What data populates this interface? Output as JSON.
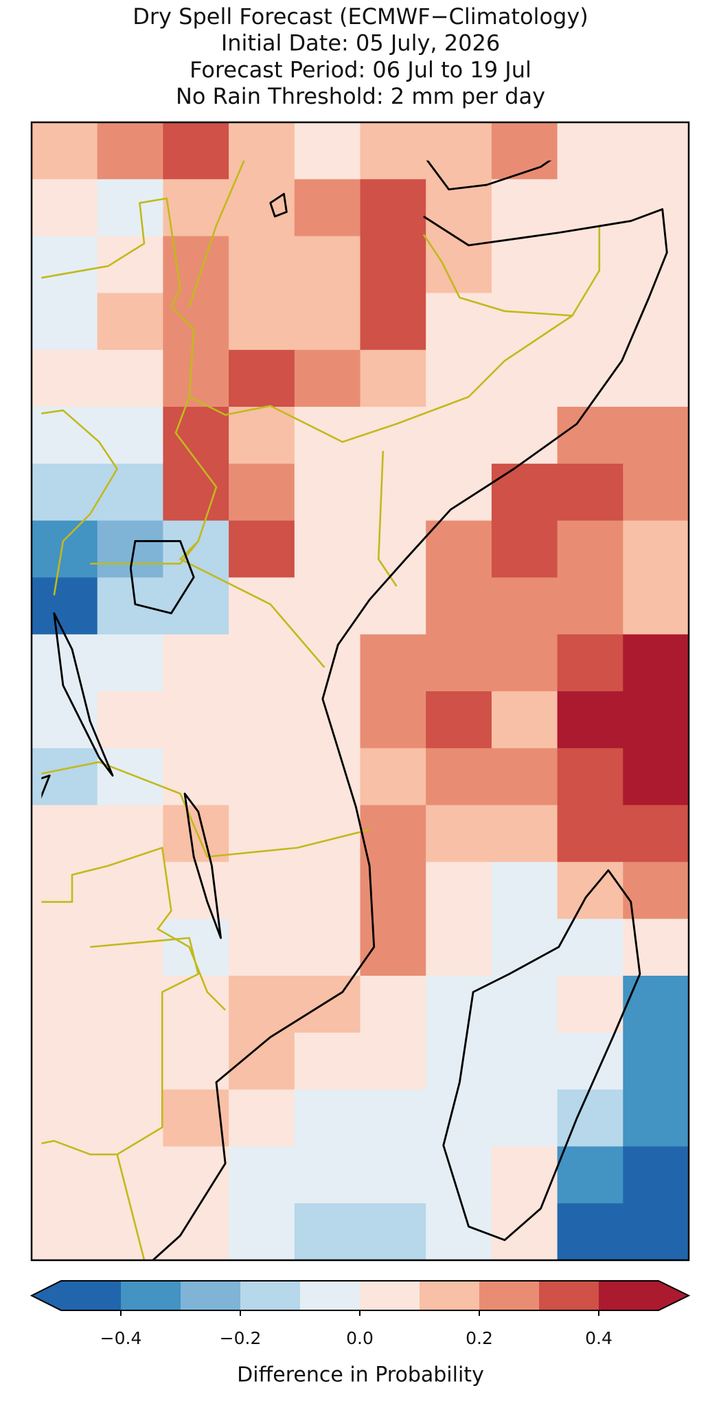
{
  "chart_data": {
    "type": "heatmap",
    "title": [
      "Dry Spell Forecast (ECMWF−Climatology)",
      "Initial Date: 05 July, 2026",
      "Forecast Period: 06 Jul to 19 Jul",
      "No Rain Threshold: 2 mm per day"
    ],
    "z": [
      [
        0.15,
        0.2,
        0.3,
        0.1,
        0.05,
        0.15,
        0.1,
        0.2,
        0.05,
        0.05
      ],
      [
        0,
        -0.1,
        0.1,
        0.15,
        0.2,
        0.35,
        0.1,
        0,
        0.05,
        0.05
      ],
      [
        -0.05,
        0.05,
        0.2,
        0.1,
        0.15,
        0.3,
        0.15,
        0.05,
        0.05,
        0.05
      ],
      [
        -0.05,
        0.1,
        0.25,
        0.1,
        0.15,
        0.35,
        0.05,
        0.05,
        0.05,
        0.05
      ],
      [
        0,
        0.05,
        0.2,
        0.3,
        0.2,
        0.1,
        0.05,
        0.05,
        0.05,
        0.05
      ],
      [
        -0.05,
        -0.05,
        0.3,
        0.15,
        0.05,
        0.05,
        0.05,
        0.05,
        0.2,
        0.2
      ],
      [
        -0.15,
        -0.2,
        0.3,
        0.25,
        0.05,
        0.05,
        0.05,
        0.3,
        0.3,
        0.2
      ],
      [
        -0.4,
        -0.3,
        -0.15,
        0.35,
        0.05,
        0.05,
        0.2,
        0.3,
        0.25,
        0.15
      ],
      [
        -0.45,
        -0.15,
        -0.15,
        0.05,
        0.05,
        0.05,
        0.2,
        0.2,
        0.2,
        0.15
      ],
      [
        -0.05,
        -0.05,
        0.05,
        0.05,
        0.05,
        0.25,
        0.25,
        0.2,
        0.35,
        0.4
      ],
      [
        -0.05,
        0.05,
        0.05,
        0.05,
        0.05,
        0.25,
        0.35,
        0.15,
        0.4,
        0.45
      ],
      [
        -0.15,
        -0.05,
        0.05,
        0.05,
        0.05,
        0.15,
        0.25,
        0.25,
        0.35,
        0.45
      ],
      [
        0.05,
        0.05,
        0.15,
        0.05,
        0.05,
        0.25,
        0.15,
        0.15,
        0.35,
        0.35
      ],
      [
        0.05,
        0.05,
        0.05,
        0.05,
        0.05,
        0.25,
        0.05,
        -0.05,
        0.15,
        0.25
      ],
      [
        0.05,
        0.05,
        -0.05,
        0.05,
        0.05,
        0.25,
        0.05,
        -0.05,
        -0.05,
        0.05
      ],
      [
        0.05,
        0.05,
        0.05,
        0.15,
        0.15,
        0.05,
        -0.05,
        -0.05,
        0.05,
        -0.35
      ],
      [
        0.05,
        0.05,
        0.05,
        0.15,
        0.05,
        0.05,
        -0.05,
        -0.05,
        -0.05,
        -0.35
      ],
      [
        0.05,
        0.05,
        0.15,
        0.05,
        -0.05,
        -0.05,
        -0.05,
        -0.05,
        -0.15,
        -0.35
      ],
      [
        0.05,
        0.05,
        0.05,
        -0.05,
        -0.05,
        -0.05,
        -0.05,
        0.05,
        -0.35,
        -0.45
      ],
      [
        0.05,
        0.05,
        0.05,
        -0.05,
        -0.15,
        -0.15,
        -0.05,
        0.05,
        -0.45,
        -0.45
      ]
    ],
    "colorbar": {
      "label": "Difference in Probability",
      "boundaries": [
        -0.5,
        -0.4,
        -0.3,
        -0.2,
        -0.1,
        0,
        0.1,
        0.2,
        0.3,
        0.4,
        0.5
      ],
      "colors": [
        "#2166ac",
        "#4393c3",
        "#7fb4d7",
        "#b7d7ea",
        "#e5eef4",
        "#fbe5dc",
        "#f8c0a6",
        "#e88d73",
        "#cf5147",
        "#ac1a2f"
      ],
      "ticks": [
        {
          "value": -0.4,
          "label": "−0.4"
        },
        {
          "value": -0.2,
          "label": "−0.2"
        },
        {
          "value": 0,
          "label": "0.0"
        },
        0.2,
        0.4
      ],
      "extend": "both"
    }
  }
}
